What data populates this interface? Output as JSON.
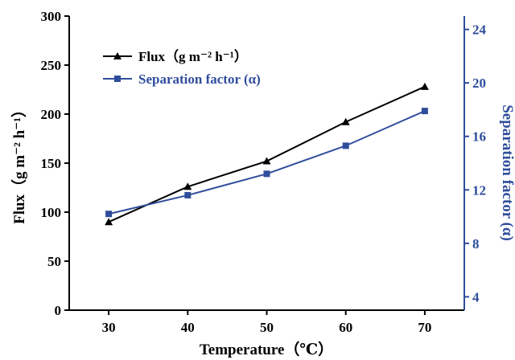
{
  "colors": {
    "flux": "#000000",
    "separation": "#2f4d9b",
    "axis_left": "#000000",
    "axis_right": "#2f4d9b"
  },
  "chart_data": {
    "type": "line",
    "x": [
      30,
      40,
      50,
      60,
      70
    ],
    "xlabel": "Temperature（℃）",
    "ylabel": "Flux（g m⁻² h⁻¹）",
    "y2label": "Separation factor (α)",
    "xlim": [
      25,
      75
    ],
    "ylim": [
      0,
      300
    ],
    "y2lim": [
      3,
      25
    ],
    "x_ticks": [
      "30",
      "40",
      "50",
      "60",
      "70"
    ],
    "y_ticks": [
      "0",
      "50",
      "100",
      "150",
      "200",
      "250",
      "300"
    ],
    "y2_ticks": [
      "4",
      "8",
      "12",
      "16",
      "20",
      "24"
    ],
    "legend_position": "top-left",
    "grid": false,
    "series": [
      {
        "name": "Flux（g m⁻² h⁻¹）",
        "axis": "left",
        "marker": "triangle",
        "values": [
          90,
          126,
          152,
          192,
          228
        ]
      },
      {
        "name": "Separation factor (α)",
        "axis": "right",
        "marker": "square",
        "values": [
          10.2,
          11.6,
          13.2,
          15.3,
          17.9
        ]
      }
    ]
  }
}
